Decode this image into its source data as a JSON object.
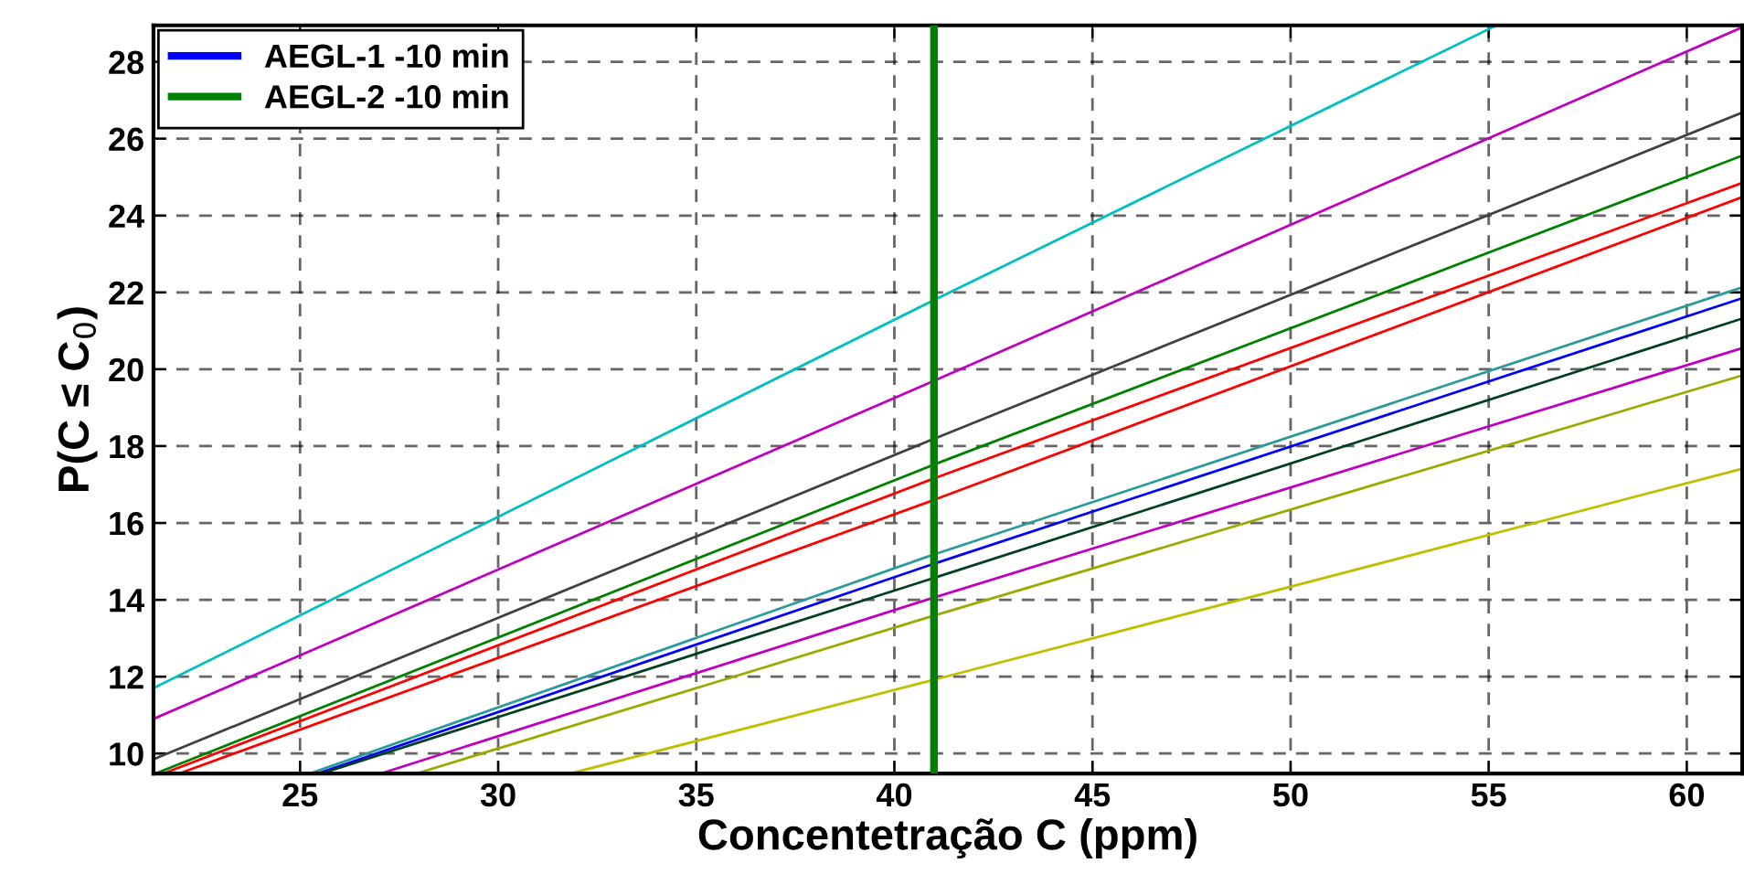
{
  "chart_data": {
    "type": "line",
    "xlabel": "Concentetração C (ppm)",
    "ylabel": "P(C ≤ C$_{0}$)",
    "xlim": [
      21.3,
      61.4
    ],
    "ylim": [
      9.48,
      28.95
    ],
    "xticks": [
      25,
      30,
      35,
      40,
      45,
      50,
      55,
      60
    ],
    "yticks": [
      10,
      12,
      14,
      16,
      18,
      20,
      22,
      24,
      26,
      28
    ],
    "grid": true,
    "legend": "top left",
    "line_style": "solid",
    "marker": "none",
    "series": [
      {
        "name": "AEGL-1 -10 min",
        "color": "#0000ff"
      },
      {
        "name": "AEGL-2 -10 min",
        "color": "#008000",
        "x": [
          41,
          41
        ],
        "values": [
          9.48,
          28.95
        ]
      },
      {
        "color": "#00bfbf",
        "x": [
          21.3,
          41,
          55.2
        ],
        "values": [
          11.7,
          21.8,
          28.95
        ]
      },
      {
        "color": "#bf00bf",
        "x": [
          21.3,
          41,
          61.4
        ],
        "values": [
          10.9,
          19.7,
          28.9
        ]
      },
      {
        "color": "#404040",
        "x": [
          21.3,
          41,
          61.4
        ],
        "values": [
          9.85,
          18.19,
          26.68
        ]
      },
      {
        "color": "#008000",
        "x": [
          21.4,
          41,
          61.4
        ],
        "values": [
          9.5,
          17.52,
          25.56
        ]
      },
      {
        "color": "#ff0000",
        "x": [
          21.6,
          41,
          61.4
        ],
        "values": [
          9.5,
          17.16,
          24.85
        ]
      },
      {
        "color": "#ff0000",
        "x": [
          22.0,
          41,
          61.4
        ],
        "values": [
          9.5,
          16.6,
          24.48
        ]
      },
      {
        "color": "#2a9a9a",
        "x": [
          25.3,
          41,
          61.4
        ],
        "values": [
          9.5,
          15.18,
          22.13
        ]
      },
      {
        "color": "#0000ff",
        "x": [
          25.5,
          41,
          61.4
        ],
        "values": [
          9.5,
          14.94,
          21.85
        ]
      },
      {
        "color": "#004020",
        "x": [
          25.6,
          41,
          61.4
        ],
        "values": [
          9.5,
          14.57,
          21.32
        ]
      },
      {
        "color": "#bf00bf",
        "x": [
          27.1,
          41,
          61.4
        ],
        "values": [
          9.5,
          14.06,
          20.55
        ]
      },
      {
        "color": "#9aaa00",
        "x": [
          28.0,
          41,
          61.4
        ],
        "values": [
          9.5,
          13.59,
          19.84
        ]
      },
      {
        "color": "#bfbf00",
        "x": [
          31.9,
          41,
          61.4
        ],
        "values": [
          9.5,
          11.92,
          17.41
        ]
      }
    ]
  }
}
